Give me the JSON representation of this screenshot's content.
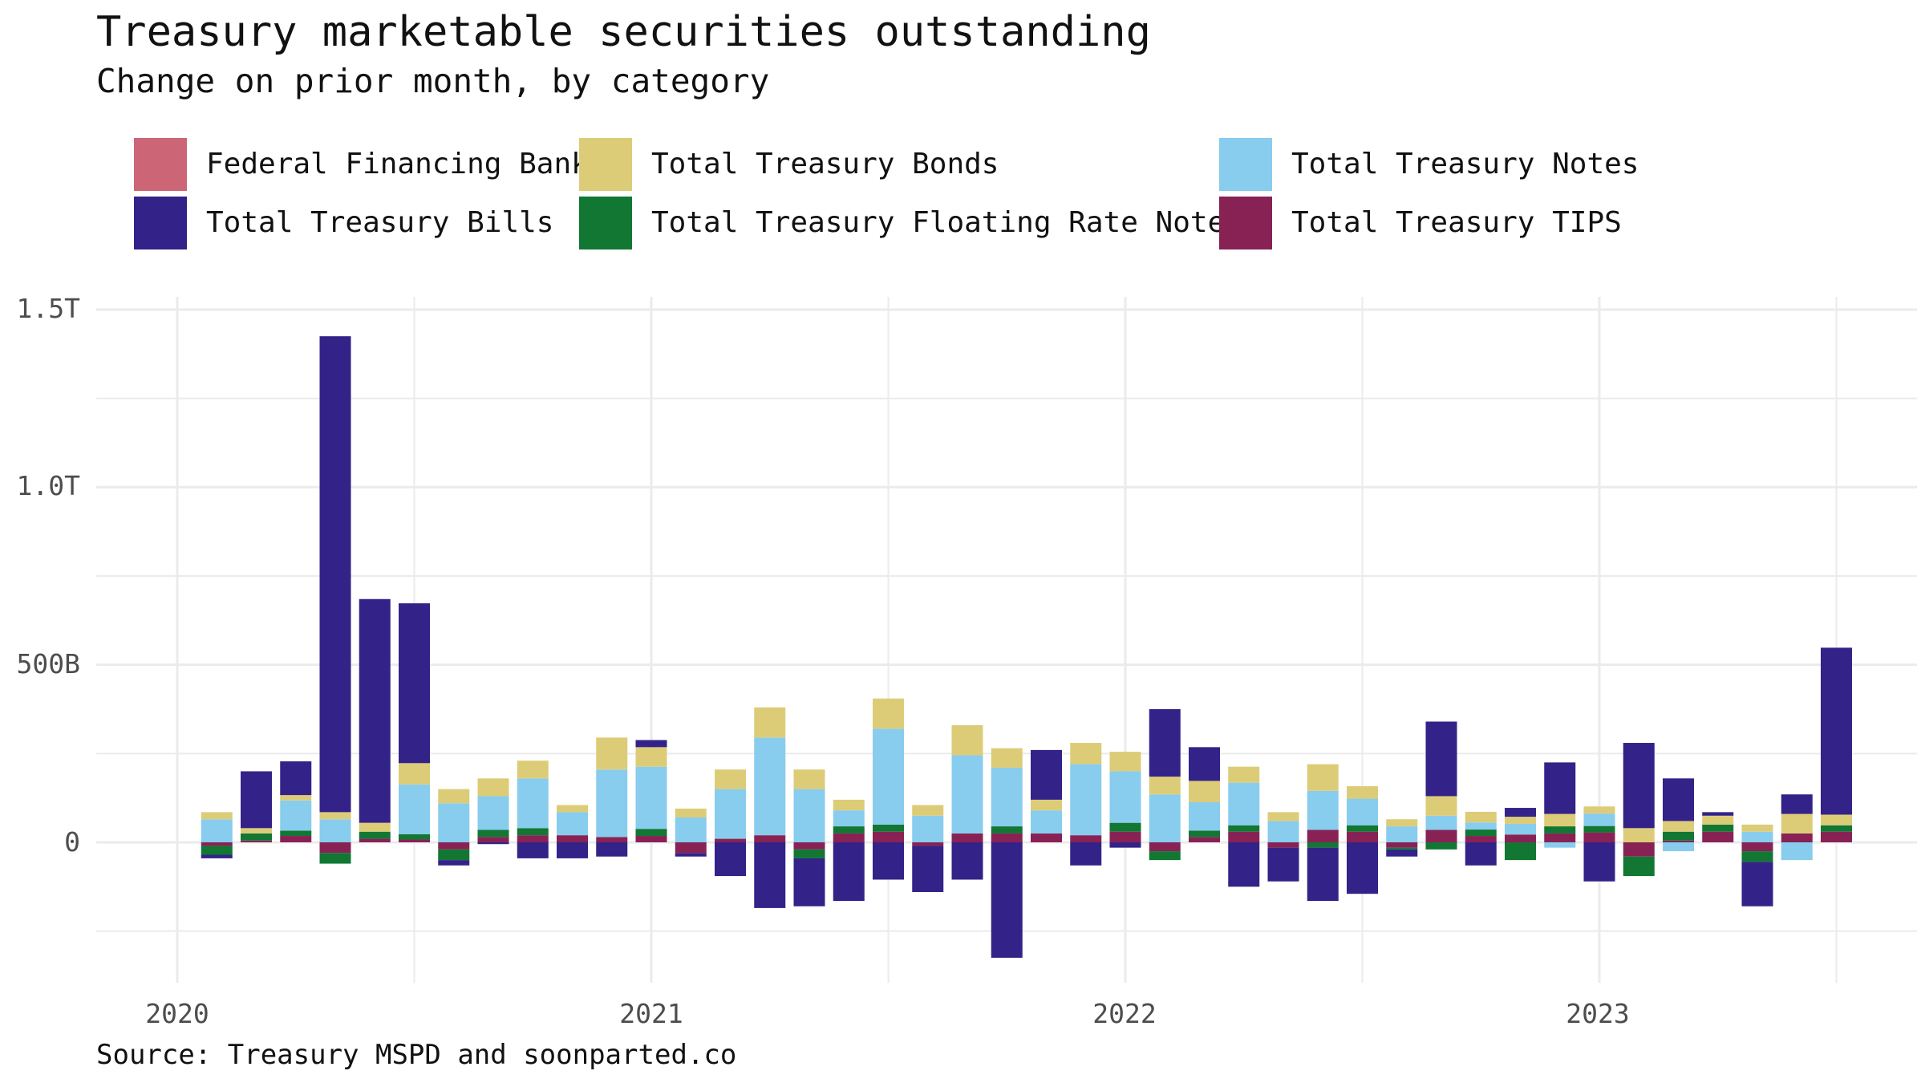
{
  "title": "Treasury marketable securities outstanding",
  "subtitle": "Change on prior month, by category",
  "source": "Source: Treasury MSPD and soonparted.co",
  "legend": [
    {
      "name": "Federal Financing Bank",
      "color": "#CC6677"
    },
    {
      "name": "Total Treasury Bonds",
      "color": "#DDCC77"
    },
    {
      "name": "Total Treasury Notes",
      "color": "#88CCEE"
    },
    {
      "name": "Total Treasury Bills",
      "color": "#332288"
    },
    {
      "name": "Total Treasury Floating Rate Notes",
      "color": "#117733"
    },
    {
      "name": "Total Treasury TIPS",
      "color": "#882255"
    }
  ],
  "chart_data": {
    "type": "bar",
    "stacked": true,
    "x_tick_labels": [
      "2020",
      "2021",
      "2022",
      "2023"
    ],
    "y_tick_labels": [
      "1.5T",
      "1.0T",
      "500B",
      "0"
    ],
    "y_ticks": [
      1500,
      1000,
      500,
      0
    ],
    "ylim": [
      -400,
      1500
    ],
    "y_units": "billions USD",
    "grid": true,
    "legend_position": "top",
    "categories": [
      "2020-01",
      "2020-02",
      "2020-03",
      "2020-04",
      "2020-05",
      "2020-06",
      "2020-07",
      "2020-08",
      "2020-09",
      "2020-10",
      "2020-11",
      "2020-12",
      "2021-01",
      "2021-02",
      "2021-03",
      "2021-04",
      "2021-05",
      "2021-06",
      "2021-07",
      "2021-08",
      "2021-09",
      "2021-10",
      "2021-11",
      "2021-12",
      "2022-01",
      "2022-02",
      "2022-03",
      "2022-04",
      "2022-05",
      "2022-06",
      "2022-07",
      "2022-08",
      "2022-09",
      "2022-10",
      "2022-11",
      "2022-12",
      "2023-01",
      "2023-02",
      "2023-03",
      "2023-04",
      "2023-05",
      "2023-06"
    ],
    "series": [
      {
        "name": "Total Treasury TIPS",
        "values": [
          -10,
          5,
          18,
          -30,
          10,
          8,
          -20,
          15,
          20,
          20,
          15,
          18,
          -30,
          10,
          20,
          -20,
          25,
          30,
          -10,
          25,
          25,
          25,
          20,
          30,
          -25,
          15,
          30,
          -15,
          35,
          30,
          -15,
          35,
          18,
          22,
          25,
          28,
          -40,
          5,
          30,
          -25,
          25,
          30
        ]
      },
      {
        "name": "Total Treasury Floating Rate Notes",
        "values": [
          -25,
          20,
          15,
          -30,
          20,
          15,
          -30,
          20,
          20,
          0,
          0,
          20,
          0,
          0,
          0,
          -25,
          20,
          20,
          0,
          0,
          20,
          0,
          0,
          25,
          -25,
          18,
          18,
          0,
          -15,
          18,
          -5,
          -20,
          18,
          -50,
          20,
          18,
          -55,
          25,
          20,
          -30,
          0,
          18
        ]
      },
      {
        "name": "Total Treasury Notes",
        "values": [
          65,
          0,
          85,
          65,
          0,
          140,
          110,
          95,
          140,
          65,
          190,
          175,
          70,
          140,
          275,
          150,
          45,
          270,
          75,
          220,
          165,
          65,
          200,
          145,
          135,
          80,
          120,
          60,
          110,
          75,
          45,
          40,
          20,
          30,
          -15,
          35,
          0,
          -25,
          0,
          30,
          -50,
          0
        ]
      },
      {
        "name": "Total Treasury Bonds",
        "values": [
          20,
          15,
          15,
          20,
          25,
          60,
          40,
          50,
          50,
          20,
          90,
          55,
          25,
          55,
          85,
          55,
          30,
          85,
          30,
          85,
          55,
          30,
          60,
          55,
          50,
          60,
          45,
          25,
          75,
          35,
          20,
          55,
          30,
          20,
          35,
          20,
          40,
          30,
          25,
          20,
          55,
          30
        ]
      },
      {
        "name": "Total Treasury Bills",
        "values": [
          -10,
          160,
          95,
          1340,
          630,
          450,
          -15,
          -5,
          -45,
          -45,
          -40,
          20,
          -10,
          -95,
          -185,
          -135,
          -165,
          -105,
          -130,
          -105,
          -325,
          140,
          -65,
          -15,
          190,
          95,
          -125,
          -95,
          -150,
          -145,
          -20,
          210,
          -65,
          25,
          145,
          -110,
          240,
          120,
          10,
          -125,
          55,
          470
        ]
      },
      {
        "name": "Federal Financing Bank",
        "values": [
          0,
          0,
          0,
          0,
          0,
          0,
          0,
          0,
          0,
          0,
          0,
          0,
          0,
          0,
          0,
          0,
          0,
          0,
          0,
          0,
          0,
          0,
          0,
          0,
          0,
          0,
          0,
          0,
          0,
          0,
          0,
          0,
          0,
          0,
          0,
          0,
          0,
          0,
          0,
          0,
          0,
          0
        ]
      }
    ]
  }
}
